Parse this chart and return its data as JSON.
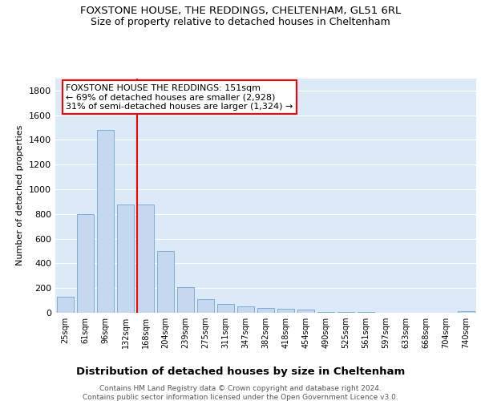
{
  "title1": "FOXSTONE HOUSE, THE REDDINGS, CHELTENHAM, GL51 6RL",
  "title2": "Size of property relative to detached houses in Cheltenham",
  "xlabel": "Distribution of detached houses by size in Cheltenham",
  "ylabel": "Number of detached properties",
  "categories": [
    "25sqm",
    "61sqm",
    "96sqm",
    "132sqm",
    "168sqm",
    "204sqm",
    "239sqm",
    "275sqm",
    "311sqm",
    "347sqm",
    "382sqm",
    "418sqm",
    "454sqm",
    "490sqm",
    "525sqm",
    "561sqm",
    "597sqm",
    "633sqm",
    "668sqm",
    "704sqm",
    "740sqm"
  ],
  "values": [
    128,
    800,
    1480,
    880,
    880,
    500,
    205,
    110,
    70,
    55,
    40,
    30,
    25,
    8,
    6,
    4,
    3,
    2,
    2,
    1,
    15
  ],
  "bar_color": "#c5d8f0",
  "bar_edge_color": "#7bafd4",
  "red_line_x": 3.57,
  "annotation_text": "FOXSTONE HOUSE THE REDDINGS: 151sqm\n← 69% of detached houses are smaller (2,928)\n31% of semi-detached houses are larger (1,324) →",
  "footer1": "Contains HM Land Registry data © Crown copyright and database right 2024.",
  "footer2": "Contains public sector information licensed under the Open Government Licence v3.0.",
  "bg_color": "#ffffff",
  "plot_bg_color": "#dce9f7",
  "grid_color": "#ffffff",
  "ylim": [
    0,
    1900
  ],
  "yticks": [
    0,
    200,
    400,
    600,
    800,
    1000,
    1200,
    1400,
    1600,
    1800
  ]
}
